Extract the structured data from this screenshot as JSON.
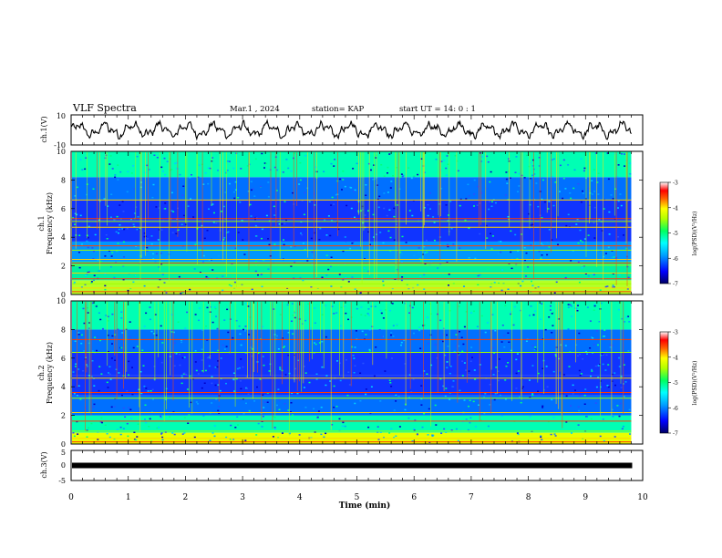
{
  "header": {
    "title": "VLF Spectra",
    "date": "Mar.1  , 2024",
    "station": "station= KAP",
    "start": "start  UT =  14: 0  : 1"
  },
  "chart_data": {
    "type": "heatmap",
    "title": "VLF Spectra",
    "xlabel": "Time  (min)",
    "xlim": [
      0,
      10
    ],
    "xticks": [
      "0",
      "1",
      "2",
      "3",
      "4",
      "5",
      "6",
      "7",
      "8",
      "9",
      "10"
    ],
    "panels": [
      {
        "id": "ch1-waveform",
        "type": "line",
        "ylabel": "ch.1(V)",
        "ylim": [
          -10,
          10
        ],
        "yticks": [
          "10",
          "-10"
        ],
        "data_x_end_min": 9.8
      },
      {
        "id": "ch1-spectrogram",
        "type": "heatmap",
        "ylabel": "ch.1\nFrequency  (kHz)",
        "ylim": [
          0,
          10
        ],
        "yticks": [
          "0",
          "2",
          "4",
          "6",
          "8",
          "10"
        ],
        "colorbar": {
          "label": "log(PSD)(V²/Hz)",
          "range": [
            -7,
            -3
          ],
          "ticks": [
            "-3",
            "-4",
            "-5",
            "-6",
            "-7"
          ]
        },
        "background_bands": [
          [
            0,
            1.0,
            "yellow-green"
          ],
          [
            1.0,
            2.3,
            "green-cyan"
          ],
          [
            2.3,
            3.7,
            "cyan-blue"
          ],
          [
            3.7,
            5.2,
            "blue"
          ],
          [
            5.2,
            6.6,
            "blue"
          ],
          [
            6.6,
            8.2,
            "blue-cyan"
          ],
          [
            8.2,
            10,
            "cyan-green"
          ]
        ],
        "line_frequencies_khz": [
          0.2,
          0.45,
          0.75,
          1.1,
          1.5,
          2.05,
          2.2,
          2.45,
          3.1,
          3.4,
          4.7,
          5.1,
          5.3,
          6.6
        ]
      },
      {
        "id": "ch2-spectrogram",
        "type": "heatmap",
        "ylabel": "ch.2\nFrequency  (kHz)",
        "ylim": [
          0,
          10
        ],
        "yticks": [
          "0",
          "2",
          "4",
          "6",
          "8",
          "10"
        ],
        "colorbar": {
          "label": "log(PSD)(V²/Hz)",
          "range": [
            -7,
            -3
          ],
          "ticks": [
            "-3",
            "-4",
            "-5",
            "-6",
            "-7"
          ]
        },
        "background_bands": [
          [
            0,
            0.8,
            "yellow"
          ],
          [
            0.8,
            2.0,
            "cyan-green"
          ],
          [
            2.0,
            3.4,
            "blue-cyan"
          ],
          [
            3.4,
            4.8,
            "blue"
          ],
          [
            4.8,
            6.4,
            "blue"
          ],
          [
            6.4,
            8.0,
            "blue-cyan"
          ],
          [
            8.0,
            10,
            "cyan-green"
          ]
        ],
        "line_frequencies_khz": [
          0.15,
          0.4,
          0.9,
          1.6,
          2.2,
          3.2,
          3.6,
          4.6,
          6.4,
          7.3
        ]
      },
      {
        "id": "ch3-waveform",
        "type": "line",
        "ylabel": "ch.3(V)",
        "ylim": [
          -5,
          5
        ],
        "yticks": [
          "5",
          "0",
          "-5"
        ],
        "constant_value": 0,
        "data_x_end_min": 9.8
      }
    ]
  }
}
